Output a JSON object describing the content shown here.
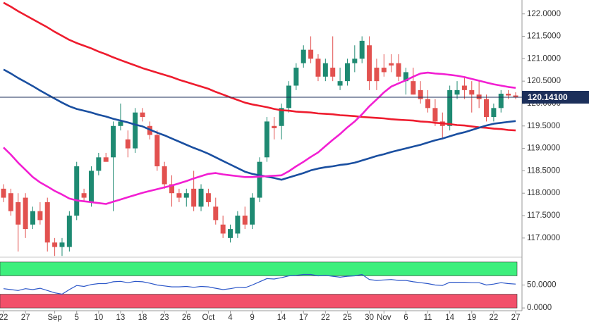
{
  "chart_data": [
    {
      "type": "candlestick",
      "categories": [
        "22",
        null,
        null,
        "27",
        null,
        null,
        null,
        "Sep",
        null,
        null,
        "5",
        null,
        null,
        "10",
        null,
        null,
        "13",
        null,
        null,
        "18",
        null,
        null,
        "23",
        null,
        null,
        "26",
        null,
        null,
        "Oct",
        null,
        null,
        "4",
        null,
        null,
        "9",
        null,
        null,
        null,
        "14",
        null,
        null,
        "17",
        null,
        null,
        "22",
        null,
        null,
        "25",
        null,
        null,
        "30",
        null,
        "Nov",
        null,
        null,
        "6",
        null,
        null,
        "11",
        null,
        null,
        "14",
        null,
        null,
        "19",
        null,
        null,
        "22",
        null,
        null,
        "27"
      ],
      "open": [
        118.1,
        118.0,
        117.8,
        117.9,
        117.3,
        117.6,
        117.8,
        116.9,
        116.8,
        116.8,
        117.5,
        118.0,
        117.8,
        118.5,
        118.8,
        118.8,
        119.5,
        119.2,
        119.0,
        119.8,
        119.5,
        119.3,
        118.6,
        118.2,
        118.0,
        117.9,
        118.1,
        117.7,
        118.0,
        117.7,
        117.3,
        117.0,
        117.1,
        117.5,
        117.3,
        117.9,
        118.8,
        119.5,
        119.5,
        119.9,
        120.4,
        120.9,
        121.2,
        121.0,
        120.6,
        120.8,
        120.4,
        120.5,
        120.9,
        121.0,
        121.3,
        120.8,
        120.8,
        120.9,
        120.9,
        120.5,
        120.5,
        120.3,
        120.1,
        119.9,
        119.6,
        119.5,
        120.2,
        120.4,
        120.3,
        120.2,
        120.1,
        119.7,
        119.9,
        120.22,
        120.18
      ],
      "high": [
        118.2,
        118.1,
        118.0,
        118.0,
        117.7,
        117.8,
        117.9,
        117.0,
        117.0,
        117.6,
        118.7,
        118.1,
        118.6,
        118.9,
        118.9,
        119.6,
        120.0,
        119.4,
        119.9,
        119.9,
        119.6,
        119.4,
        118.7,
        118.4,
        118.1,
        118.1,
        118.5,
        118.2,
        118.1,
        117.9,
        117.5,
        117.3,
        117.6,
        117.7,
        118.0,
        118.8,
        119.7,
        119.7,
        120.0,
        120.5,
        120.9,
        121.3,
        121.5,
        121.1,
        121.0,
        121.5,
        120.8,
        121.0,
        121.3,
        121.5,
        121.5,
        121.0,
        121.1,
        121.1,
        121.1,
        120.8,
        120.8,
        120.5,
        120.3,
        120.1,
        119.8,
        120.4,
        120.5,
        120.6,
        120.5,
        120.5,
        120.2,
        120.0,
        120.3,
        120.3,
        120.25
      ],
      "low": [
        117.8,
        117.5,
        116.7,
        117.0,
        117.2,
        117.3,
        116.7,
        116.6,
        116.6,
        116.7,
        117.4,
        117.8,
        117.7,
        118.4,
        118.7,
        117.6,
        119.4,
        118.8,
        118.9,
        119.6,
        119.2,
        118.5,
        118.1,
        117.7,
        117.8,
        117.7,
        117.6,
        117.6,
        117.7,
        117.3,
        117.0,
        116.9,
        117.0,
        117.2,
        117.2,
        117.8,
        118.7,
        119.2,
        119.2,
        119.8,
        120.3,
        120.8,
        120.9,
        120.5,
        120.5,
        120.5,
        120.3,
        120.4,
        120.7,
        120.9,
        120.3,
        120.3,
        120.6,
        120.7,
        120.5,
        120.2,
        120.2,
        120.0,
        119.8,
        119.5,
        119.2,
        119.4,
        120.1,
        120.1,
        119.8,
        119.9,
        119.6,
        119.6,
        119.8,
        120.1,
        120.1
      ],
      "close": [
        117.9,
        117.6,
        117.3,
        117.2,
        117.6,
        117.4,
        116.9,
        116.8,
        116.9,
        117.5,
        118.6,
        117.9,
        118.5,
        118.8,
        118.7,
        119.5,
        119.6,
        119.0,
        119.8,
        119.7,
        119.3,
        118.6,
        118.2,
        118.0,
        117.9,
        118.0,
        117.7,
        118.1,
        117.8,
        117.4,
        117.1,
        117.2,
        117.5,
        117.3,
        117.9,
        118.7,
        119.6,
        119.45,
        119.9,
        120.4,
        120.8,
        121.2,
        121.0,
        120.6,
        120.9,
        120.6,
        120.5,
        120.9,
        121.0,
        121.4,
        120.5,
        120.5,
        120.7,
        120.85,
        120.6,
        120.7,
        120.2,
        120.1,
        119.9,
        119.6,
        119.5,
        120.3,
        120.3,
        120.3,
        120.2,
        120.1,
        119.7,
        119.9,
        120.22,
        120.18,
        120.141
      ],
      "up_color": "#1e8a72",
      "down_color": "#e2514f",
      "series": [
        {
          "color": "#ee1c2e",
          "values": [
            122.25,
            122.16,
            122.06,
            121.97,
            121.88,
            121.79,
            121.7,
            121.6,
            121.51,
            121.42,
            121.35,
            121.29,
            121.23,
            121.16,
            121.1,
            121.03,
            120.97,
            120.91,
            120.85,
            120.79,
            120.74,
            120.69,
            120.64,
            120.59,
            120.53,
            120.48,
            120.43,
            120.38,
            120.33,
            120.26,
            120.2,
            120.14,
            120.08,
            120.02,
            119.98,
            119.95,
            119.92,
            119.88,
            119.85,
            119.84,
            119.82,
            119.81,
            119.8,
            119.78,
            119.77,
            119.76,
            119.74,
            119.73,
            119.72,
            119.7,
            119.69,
            119.68,
            119.67,
            119.65,
            119.64,
            119.63,
            119.62,
            119.6,
            119.59,
            119.57,
            119.56,
            119.54,
            119.52,
            119.51,
            119.49,
            119.47,
            119.46,
            119.44,
            119.43,
            119.41,
            119.4
          ]
        },
        {
          "color": "#1a4fa0",
          "values": [
            120.76,
            120.67,
            120.57,
            120.48,
            120.39,
            120.29,
            120.2,
            120.11,
            120.02,
            119.94,
            119.88,
            119.84,
            119.8,
            119.75,
            119.71,
            119.66,
            119.62,
            119.58,
            119.53,
            119.49,
            119.42,
            119.35,
            119.29,
            119.22,
            119.15,
            119.08,
            119.01,
            118.95,
            118.88,
            118.8,
            118.72,
            118.64,
            118.56,
            118.48,
            118.43,
            118.4,
            118.37,
            118.34,
            118.3,
            118.35,
            118.4,
            118.45,
            118.51,
            118.55,
            118.58,
            118.6,
            118.63,
            118.65,
            118.68,
            118.73,
            118.78,
            118.83,
            118.87,
            118.92,
            118.96,
            119.0,
            119.04,
            119.08,
            119.13,
            119.18,
            119.22,
            119.27,
            119.32,
            119.36,
            119.41,
            119.46,
            119.51,
            119.55,
            119.57,
            119.59,
            119.61
          ]
        },
        {
          "color": "#f21fd2",
          "values": [
            119.02,
            118.86,
            118.68,
            118.52,
            118.36,
            118.24,
            118.15,
            118.05,
            117.97,
            117.88,
            117.84,
            117.82,
            117.8,
            117.78,
            117.76,
            117.81,
            117.86,
            117.91,
            117.96,
            118.01,
            118.05,
            118.09,
            118.13,
            118.17,
            118.22,
            118.27,
            118.33,
            118.38,
            118.43,
            118.45,
            118.42,
            118.4,
            118.38,
            118.36,
            118.36,
            118.37,
            118.38,
            118.39,
            118.4,
            118.49,
            118.6,
            118.7,
            118.81,
            118.91,
            119.05,
            119.19,
            119.32,
            119.47,
            119.6,
            119.76,
            119.94,
            120.09,
            120.25,
            120.38,
            120.45,
            120.52,
            120.6,
            120.67,
            120.69,
            120.67,
            120.66,
            120.64,
            120.62,
            120.59,
            120.55,
            120.51,
            120.47,
            120.43,
            120.4,
            120.37,
            120.35
          ]
        }
      ],
      "last_price": {
        "value": 120.141,
        "label": "120.14100",
        "color": "#1c2f5a"
      },
      "ylim": [
        116.62,
        122.31
      ],
      "yticks": [
        {
          "value": 117,
          "label": "117.0000"
        },
        {
          "value": 117.5,
          "label": "117.5000"
        },
        {
          "value": 118,
          "label": "118.0000"
        },
        {
          "value": 118.5,
          "label": "118.5000"
        },
        {
          "value": 119,
          "label": "119.0000"
        },
        {
          "value": 119.5,
          "label": "119.5000"
        },
        {
          "value": 120,
          "label": "120.0000"
        },
        {
          "value": 120.5,
          "label": "120.5000"
        },
        {
          "value": 121,
          "label": "121.0000"
        },
        {
          "value": 121.5,
          "label": "121.5000"
        },
        {
          "value": 122,
          "label": "122.0000"
        }
      ]
    },
    {
      "type": "line",
      "color": "#2a55c8",
      "values": [
        42,
        40,
        38,
        42,
        40,
        43,
        38,
        33,
        30,
        40,
        49,
        47,
        51,
        53,
        53,
        57,
        58,
        55,
        58,
        57,
        54,
        50,
        48,
        46,
        46,
        47,
        45,
        47,
        46,
        43,
        40,
        42,
        45,
        44,
        50,
        57,
        64,
        63,
        66,
        70,
        71,
        73,
        73,
        70,
        71,
        69,
        67,
        69,
        70,
        73,
        62,
        60,
        61,
        62,
        60,
        60,
        57,
        55,
        53,
        50,
        49,
        56,
        56,
        56,
        55,
        55,
        50,
        52,
        55,
        53,
        52
      ],
      "zones": [
        {
          "range": [
            70,
            100
          ],
          "color": "#3def7c"
        },
        {
          "range": [
            0,
            30
          ],
          "color": "#f2506a"
        }
      ],
      "ylim": [
        -6,
        106
      ],
      "yticks": [
        {
          "value": 0,
          "label": "0.0000"
        },
        {
          "value": 50,
          "label": "50.0000"
        }
      ]
    }
  ]
}
